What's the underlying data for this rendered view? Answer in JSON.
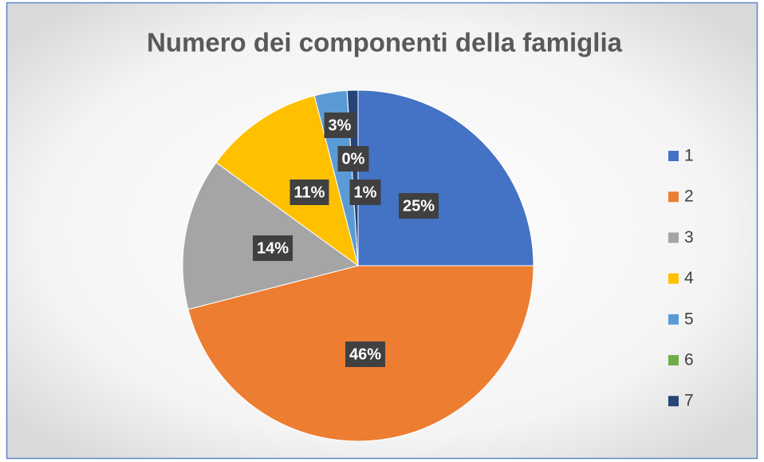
{
  "chart_data": {
    "type": "pie",
    "title": "Numero dei componenti della famiglia",
    "categories": [
      "1",
      "2",
      "3",
      "4",
      "5",
      "6",
      "7"
    ],
    "values": [
      25,
      46,
      14,
      11,
      3,
      0,
      1
    ],
    "value_labels": [
      "25%",
      "46%",
      "14%",
      "11%",
      "3%",
      "0%",
      "1%"
    ],
    "colors": [
      "#4472c4",
      "#ed7d31",
      "#a5a5a5",
      "#ffc000",
      "#5b9bd5",
      "#70ad47",
      "#264478"
    ],
    "legend": "right"
  }
}
